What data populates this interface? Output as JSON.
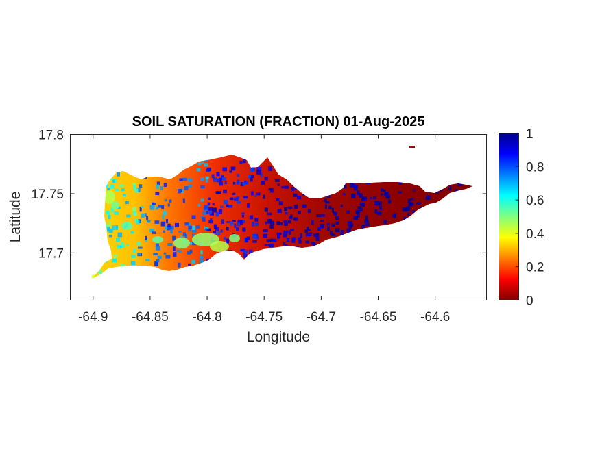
{
  "chart_data": {
    "type": "heatmap",
    "title": "SOIL SATURATION (FRACTION) 01-Aug-2025",
    "xlabel": "Longitude",
    "ylabel": "Latitude",
    "xlim": [
      -64.92,
      -64.555
    ],
    "ylim": [
      17.66,
      17.8
    ],
    "xticks": [
      -64.9,
      -64.85,
      -64.8,
      -64.75,
      -64.7,
      -64.65,
      -64.6
    ],
    "xtick_labels": [
      "-64.9",
      "-64.85",
      "-64.8",
      "-64.75",
      "-64.7",
      "-64.65",
      "-64.6"
    ],
    "yticks": [
      17.7,
      17.75,
      17.8
    ],
    "ytick_labels": [
      "17.7",
      "17.75",
      "17.8"
    ],
    "colorbar": {
      "colormap": "jet",
      "range": [
        0,
        1
      ],
      "ticks": [
        0,
        0.2,
        0.4,
        0.6,
        0.8,
        1
      ],
      "tick_labels": [
        "0",
        "0.2",
        "0.4",
        "0.6",
        "0.8",
        "1"
      ]
    },
    "field_estimate": [
      {
        "lon_range": [
          -64.9,
          -64.86
        ],
        "value": 0.38
      },
      {
        "lon_range": [
          -64.86,
          -64.8
        ],
        "value": 0.22
      },
      {
        "lon_range": [
          -64.8,
          -64.74
        ],
        "value": 0.12
      },
      {
        "lon_range": [
          -64.74,
          -64.66
        ],
        "value": 0.06
      },
      {
        "lon_range": [
          -64.66,
          -64.56
        ],
        "value": 0.04
      }
    ],
    "grid": false,
    "legend": "none"
  }
}
